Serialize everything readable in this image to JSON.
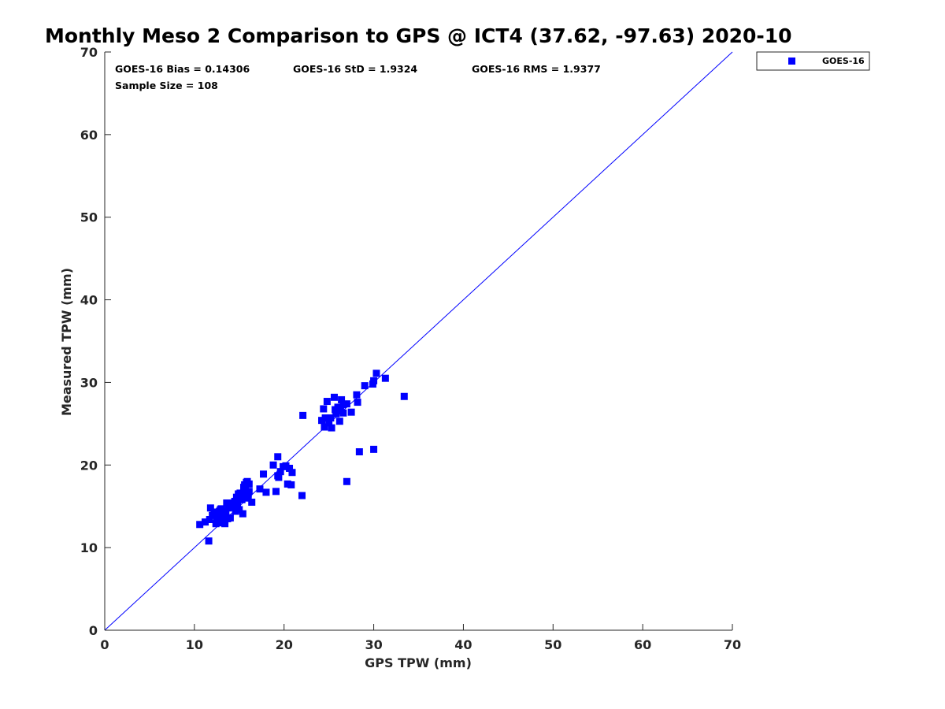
{
  "chart_data": {
    "type": "scatter",
    "title": "Monthly Meso 2 Comparison to GPS @ ICT4 (37.62, -97.63) 2020-10",
    "xlabel": "GPS TPW (mm)",
    "ylabel": "Measured TPW (mm)",
    "xlim": [
      0,
      70
    ],
    "ylim": [
      0,
      70
    ],
    "xticks": [
      "0",
      "10",
      "20",
      "30",
      "40",
      "50",
      "60",
      "70"
    ],
    "yticks": [
      "0",
      "10",
      "20",
      "30",
      "40",
      "50",
      "60",
      "70"
    ],
    "grid": false,
    "legend_position": "outside-top-right",
    "reference_line": {
      "from": [
        0,
        0
      ],
      "to": [
        70,
        70
      ],
      "color": "#0000ff"
    },
    "stats": {
      "bias": "GOES-16 Bias = 0.14306",
      "std": "GOES-16 StD = 1.9324",
      "rms": "GOES-16 RMS = 1.9377",
      "sample": "Sample Size = 108"
    },
    "series": [
      {
        "name": "GOES-16",
        "marker": "square",
        "color": "#0000ff",
        "x": [
          10.6,
          11.2,
          11.7,
          11.8,
          12.0,
          12.2,
          12.4,
          12.5,
          12.6,
          12.7,
          12.8,
          12.9,
          13.0,
          13.1,
          13.2,
          13.3,
          13.4,
          13.5,
          13.6,
          13.7,
          13.8,
          14.0,
          14.1,
          14.2,
          14.3,
          14.4,
          14.5,
          14.6,
          14.7,
          14.8,
          14.9,
          15.0,
          15.1,
          15.2,
          15.3,
          15.4,
          15.5,
          15.6,
          15.7,
          15.8,
          15.9,
          16.0,
          16.1,
          16.4,
          11.6,
          12.3,
          13.4,
          17.3,
          17.7,
          18.0,
          18.8,
          19.1,
          19.3,
          19.4,
          19.6,
          20.2,
          20.6,
          20.8,
          20.4,
          20.9,
          22.0,
          22.1,
          24.2,
          24.4,
          24.5,
          24.8,
          25.0,
          25.3,
          25.6,
          25.8,
          26.0,
          26.2,
          26.4,
          26.6,
          27.0,
          27.5,
          28.1,
          28.4,
          29.0,
          30.0,
          30.3,
          31.3,
          33.4,
          28.2,
          30.0,
          27.0,
          15.0,
          15.3,
          14.4,
          13.8,
          12.9,
          16.1,
          15.7,
          14.6,
          13.5,
          12.2,
          12.7,
          24.6,
          25.7,
          26.3,
          26.6,
          29.9,
          25.2,
          19.9,
          19.3,
          16.0,
          15.6,
          12.9
        ],
        "y": [
          12.8,
          13.1,
          13.4,
          14.8,
          13.9,
          14.3,
          12.9,
          13.6,
          14.1,
          13.3,
          14.4,
          13.0,
          14.7,
          13.8,
          13.2,
          14.2,
          12.9,
          14.0,
          15.4,
          13.5,
          14.8,
          13.6,
          15.2,
          14.9,
          15.4,
          15.0,
          15.6,
          14.4,
          16.1,
          15.1,
          16.5,
          14.6,
          16.6,
          15.9,
          16.3,
          14.1,
          17.3,
          16.4,
          16.8,
          17.9,
          18.0,
          16.5,
          17.7,
          15.5,
          10.8,
          14.3,
          13.3,
          17.1,
          18.9,
          16.7,
          20.0,
          16.8,
          21.0,
          18.5,
          19.2,
          19.9,
          19.6,
          17.6,
          17.7,
          19.1,
          16.3,
          26.0,
          25.4,
          26.8,
          24.6,
          27.7,
          25.1,
          24.5,
          28.2,
          26.2,
          27.0,
          25.3,
          27.9,
          26.3,
          27.4,
          26.4,
          28.5,
          21.6,
          29.6,
          30.2,
          31.1,
          30.5,
          28.3,
          27.6,
          21.9,
          18.0,
          16.4,
          15.8,
          15.0,
          13.6,
          14.6,
          16.8,
          16.9,
          15.4,
          14.5,
          14.0,
          14.1,
          25.7,
          26.7,
          26.6,
          27.3,
          29.8,
          25.7,
          19.8,
          18.7,
          16.0,
          17.6,
          14.0
        ]
      }
    ]
  }
}
